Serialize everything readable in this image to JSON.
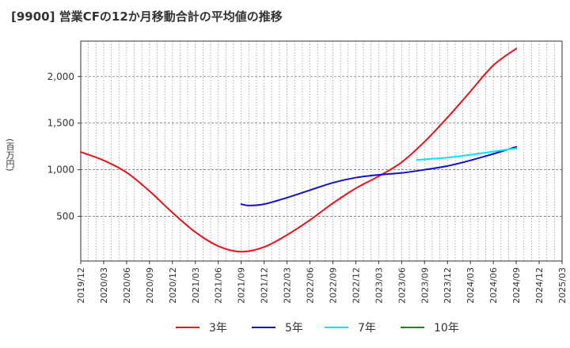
{
  "title": "[9900]  営業CFの12か月移動合計の平均値の推移",
  "chart_data": {
    "type": "line",
    "ylabel": "(百万円)",
    "ylim": [
      20,
      2380
    ],
    "yticks": [
      500,
      1000,
      1500,
      2000
    ],
    "ytick_labels": [
      "500",
      "1,000",
      "1,500",
      "2,000"
    ],
    "x_labels": [
      "2019/12",
      "2020/03",
      "2020/06",
      "2020/09",
      "2020/12",
      "2021/03",
      "2021/06",
      "2021/09",
      "2021/12",
      "2022/03",
      "2022/06",
      "2022/09",
      "2022/12",
      "2023/03",
      "2023/06",
      "2023/09",
      "2023/12",
      "2024/03",
      "2024/06",
      "2024/09",
      "2024/12",
      "2025/03"
    ],
    "grid": true,
    "legend_position": "bottom",
    "series": [
      {
        "name": "3年",
        "color": "#e8111a",
        "x": [
          "2019/12",
          "2020/03",
          "2020/06",
          "2020/09",
          "2020/12",
          "2021/03",
          "2021/06",
          "2021/09",
          "2021/12",
          "2022/03",
          "2022/06",
          "2022/09",
          "2022/12",
          "2023/03",
          "2023/06",
          "2023/09",
          "2023/12",
          "2024/03",
          "2024/06",
          "2024/09"
        ],
        "values": [
          1190,
          1100,
          970,
          770,
          540,
          330,
          180,
          120,
          170,
          300,
          460,
          640,
          800,
          930,
          1080,
          1300,
          1560,
          1840,
          2120,
          2300
        ]
      },
      {
        "name": "5年",
        "color": "#1010c8",
        "x": [
          "2021/09",
          "2021/10",
          "2021/12",
          "2022/03",
          "2022/06",
          "2022/09",
          "2022/12",
          "2023/03",
          "2023/06",
          "2023/09",
          "2023/12",
          "2024/03",
          "2024/06",
          "2024/09"
        ],
        "values": [
          630,
          615,
          630,
          700,
          780,
          860,
          915,
          945,
          965,
          1000,
          1040,
          1100,
          1170,
          1245
        ]
      },
      {
        "name": "7年",
        "color": "#00e5ff",
        "x": [
          "2023/08",
          "2023/12",
          "2024/03",
          "2024/06",
          "2024/09"
        ],
        "values": [
          1105,
          1130,
          1160,
          1195,
          1230
        ]
      },
      {
        "name": "10年",
        "color": "#1a8a1a",
        "x": [],
        "values": []
      }
    ]
  }
}
